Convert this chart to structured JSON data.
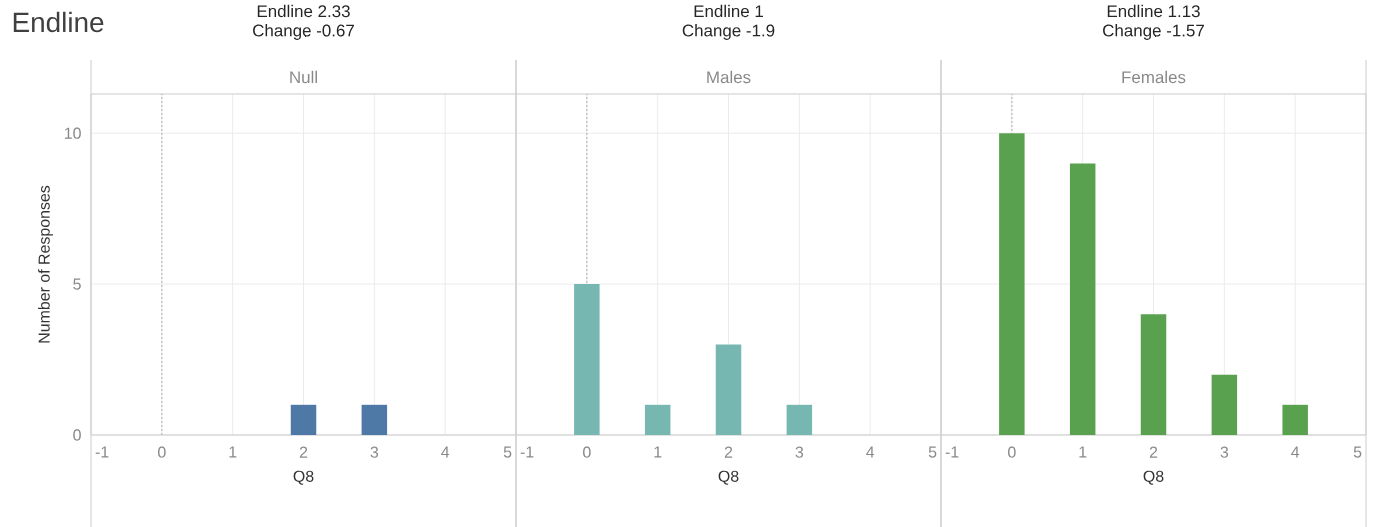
{
  "chart_data": [
    {
      "type": "bar",
      "title": "Endline",
      "subtitle": "Null",
      "annotations": [
        "Endline 2.33",
        "Change -0.67"
      ],
      "xlabel": "Q8",
      "ylabel": "Number of Responses",
      "series": [
        {
          "color": "#4e79a7",
          "x": [
            2,
            3
          ],
          "values": [
            1,
            1
          ]
        }
      ],
      "xlim": [
        -1,
        5
      ],
      "xticks": [
        -1,
        0,
        1,
        2,
        3,
        4,
        5
      ],
      "ylim": [
        0,
        11.3
      ],
      "yticks": [
        0,
        5,
        10
      ],
      "grid": true,
      "ref_lines": [
        {
          "axis": "x",
          "value": 0,
          "color": "#b0b0b0",
          "line_style": "dashed"
        }
      ]
    },
    {
      "type": "bar",
      "subtitle": "Males",
      "annotations": [
        "Endline 1",
        "Change -1.9"
      ],
      "xlabel": "Q8",
      "series": [
        {
          "color": "#76b7b2",
          "x": [
            0,
            1,
            2,
            3
          ],
          "values": [
            5,
            1,
            3,
            1
          ]
        }
      ],
      "xlim": [
        -1,
        5
      ],
      "xticks": [
        -1,
        0,
        1,
        2,
        3,
        4,
        5
      ],
      "ylim": [
        0,
        11.3
      ],
      "yticks": [
        0,
        5,
        10
      ],
      "grid": true,
      "tick_labels": "x",
      "ref_lines": [
        {
          "axis": "x",
          "value": 0,
          "color": "#b0b0b0",
          "line_style": "dashed"
        }
      ]
    },
    {
      "type": "bar",
      "subtitle": "Females",
      "annotations": [
        "Endline 1.13",
        "Change -1.57"
      ],
      "xlabel": "Q8",
      "series": [
        {
          "color": "#59a14f",
          "x": [
            0,
            1,
            2,
            3,
            4
          ],
          "values": [
            10,
            9,
            4,
            2,
            1
          ]
        }
      ],
      "xlim": [
        -1,
        5
      ],
      "xticks": [
        -1,
        0,
        1,
        2,
        3,
        4,
        5
      ],
      "ylim": [
        0,
        11.3
      ],
      "yticks": [
        0,
        5,
        10
      ],
      "grid": true,
      "tick_labels": "x",
      "ref_lines": [
        {
          "axis": "x",
          "value": 0,
          "color": "#b0b0b0",
          "line_style": "dashed"
        }
      ]
    }
  ]
}
